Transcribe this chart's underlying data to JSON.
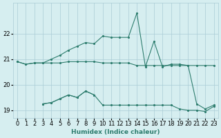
{
  "xlabel": "Humidex (Indice chaleur)",
  "x": [
    0,
    1,
    2,
    3,
    4,
    5,
    6,
    7,
    8,
    9,
    10,
    11,
    12,
    13,
    14,
    15,
    16,
    17,
    18,
    19,
    20,
    21,
    22,
    23
  ],
  "line1": [
    20.9,
    20.8,
    20.85,
    20.85,
    20.85,
    20.85,
    20.9,
    20.9,
    20.9,
    20.9,
    20.85,
    20.85,
    20.85,
    20.85,
    20.75,
    20.75,
    20.75,
    20.75,
    20.75,
    20.75,
    20.75,
    20.75,
    20.75,
    20.75
  ],
  "line2": [
    20.9,
    20.8,
    20.85,
    20.85,
    21.0,
    21.15,
    21.35,
    21.5,
    21.65,
    21.6,
    21.9,
    21.85,
    21.85,
    21.85,
    22.8,
    20.7,
    21.7,
    20.7,
    20.8,
    20.8,
    20.75,
    19.25,
    19.05,
    19.2
  ],
  "line3": [
    null,
    null,
    null,
    19.25,
    19.3,
    19.45,
    19.6,
    19.5,
    19.75,
    19.6,
    null,
    null,
    null,
    null,
    null,
    null,
    null,
    null,
    null,
    null,
    null,
    null,
    null,
    null
  ],
  "line4": [
    null,
    null,
    null,
    19.25,
    19.3,
    19.45,
    19.6,
    19.5,
    19.75,
    19.6,
    19.2,
    19.2,
    19.2,
    19.2,
    19.2,
    19.2,
    19.2,
    19.2,
    19.2,
    19.05,
    19.0,
    19.0,
    18.95,
    19.15
  ],
  "color": "#2E7D6E",
  "bg_color": "#D6EEF0",
  "grid_color": "#AACCD6",
  "ylim": [
    18.7,
    23.2
  ],
  "yticks": [
    19,
    20,
    21,
    22
  ],
  "xticks": [
    0,
    1,
    2,
    3,
    4,
    5,
    6,
    7,
    8,
    9,
    10,
    11,
    12,
    13,
    14,
    15,
    16,
    17,
    18,
    19,
    20,
    21,
    22,
    23
  ]
}
